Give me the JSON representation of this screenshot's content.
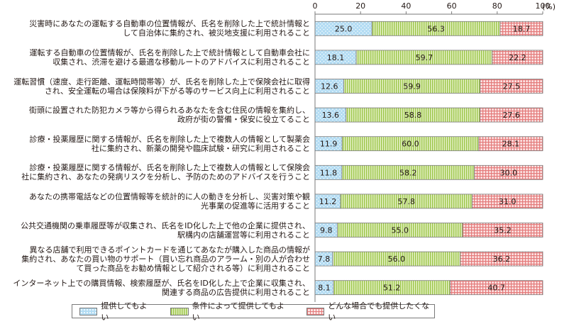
{
  "chart_data": {
    "type": "bar",
    "orientation": "horizontal",
    "stacked": true,
    "xlim": [
      0,
      100
    ],
    "xticks": [
      "0",
      "20",
      "40",
      "60",
      "80",
      "100"
    ],
    "unit_label": "(%)",
    "grid": false,
    "legend_position": "bottom",
    "categories": [
      [
        "災害時にあなたの運転する自動車の位置情報が、氏名を削除した上で統計情報と",
        "して自治体に集約され、被災地支援に利用されること"
      ],
      [
        "運転する自動車の位置情報が、氏名を削除した上で統計情報として自動車会社に",
        "収集され、渋滞を避ける最適な移動ルートのアドバイスに利用されること"
      ],
      [
        "運転習慣（速度、走行距離、運転時間帯等）が、氏名を削除した上で保険会社に取得",
        "され、安全運転の場合は保険料が下がる等のサービス向上に利用されること"
      ],
      [
        "街頭に設置された防犯カメラ等から得られるあなたを含む住民の情報を集約し、",
        "政府が街の警備・保安に役立てること"
      ],
      [
        "診療・投薬履歴に関する情報が、氏名を削除した上で複数人の情報として製薬会",
        "社に集約され、新薬の開発や臨床試験・研究に利用されること"
      ],
      [
        "診療・投薬履歴に関する情報が、氏名を削除した上で複数人の情報として保険会",
        "社に集約され、あなたの発病リスクを分析し、予防のためのアドバイスを行うこと"
      ],
      [
        "あなたの携帯電話などの位置情報等を統計的に人の動きを分析し、災害対策や観",
        "光事業の促進等に活用すること"
      ],
      [
        "公共交通機関の乗車履歴等が収集され、氏名をID化した上で他の企業に提供され、",
        "駅構内の店舗運営等に利用されること"
      ],
      [
        "異なる店舗で利用できるポイントカードを通じてあなたが購入した商品の情報が",
        "集約され、あなたの買い物のサポート（買い忘れ商品のアラーム・別の人が合わせ",
        "て買った商品をお勧め情報として紹介される等）に利用されること"
      ],
      [
        "インターネット上での購買情報、検索履歴が、氏名をID化した上で企業に収集され、",
        "関連する商品の広告提供に利用されること"
      ]
    ],
    "series": [
      {
        "name": "提供してもよい",
        "color": "#a8d4f0",
        "values": [
          25.0,
          18.1,
          12.6,
          13.6,
          11.9,
          11.8,
          11.2,
          9.8,
          7.8,
          8.1
        ]
      },
      {
        "name": "条件によって提供してもよい",
        "color": "#c6e08a",
        "values": [
          56.3,
          59.7,
          59.9,
          58.8,
          60.0,
          58.2,
          57.8,
          55.0,
          56.0,
          51.2
        ]
      },
      {
        "name": "どんな場合でも提供したくない",
        "color": "#f4a6a6",
        "values": [
          18.7,
          22.2,
          27.5,
          27.6,
          28.1,
          30.0,
          31.0,
          35.2,
          36.2,
          40.7
        ]
      }
    ],
    "value_labels": [
      [
        "25.0",
        "56.3",
        "18.7"
      ],
      [
        "18.1",
        "59.7",
        "22.2"
      ],
      [
        "12.6",
        "59.9",
        "27.5"
      ],
      [
        "13.6",
        "58.8",
        "27.6"
      ],
      [
        "11.9",
        "60.0",
        "28.1"
      ],
      [
        "11.8",
        "58.2",
        "30.0"
      ],
      [
        "11.2",
        "57.8",
        "31.0"
      ],
      [
        "9.8",
        "55.0",
        "35.2"
      ],
      [
        "7.8",
        "56.0",
        "36.2"
      ],
      [
        "8.1",
        "51.2",
        "40.7"
      ]
    ]
  }
}
